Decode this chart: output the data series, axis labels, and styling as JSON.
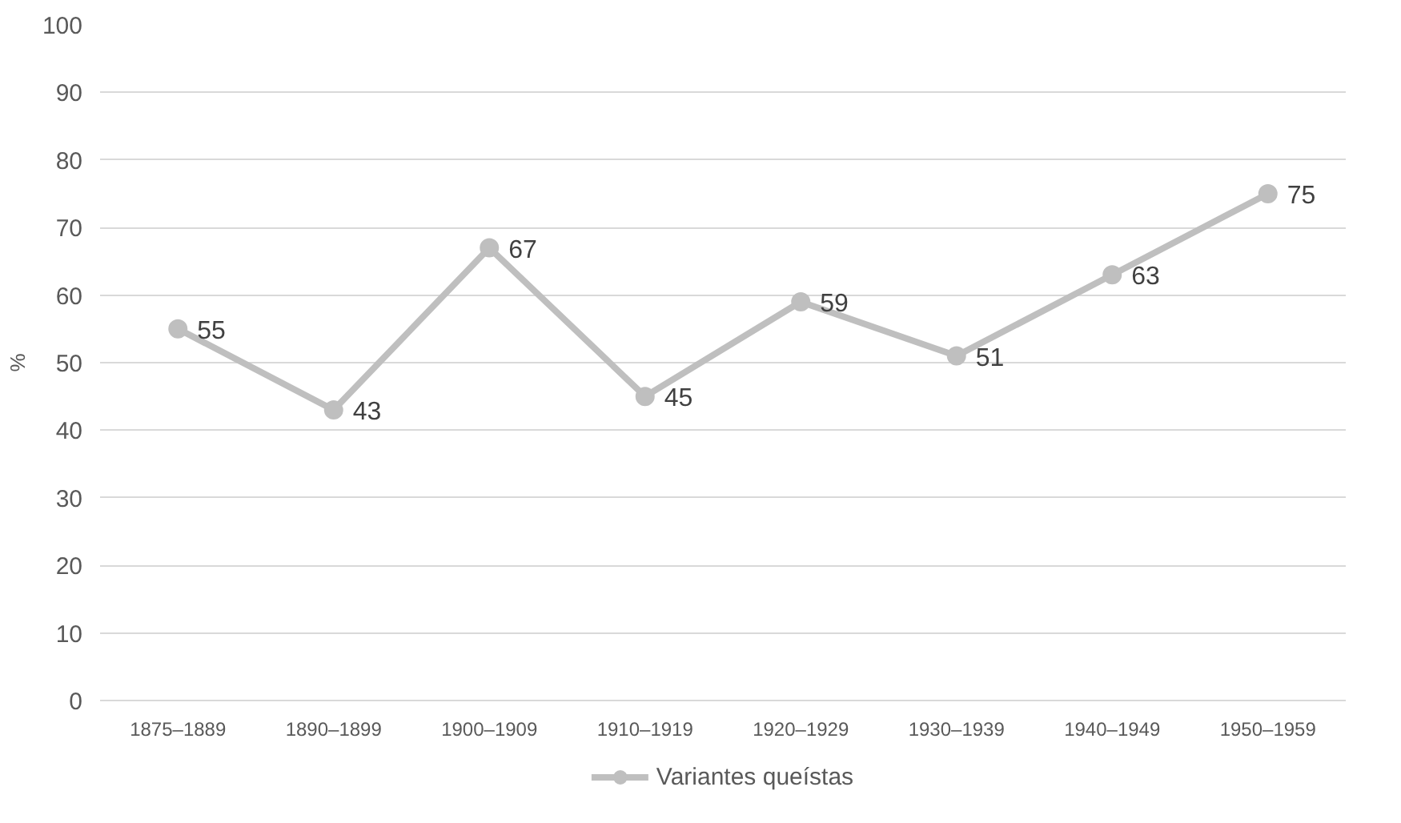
{
  "chart_data": {
    "type": "line",
    "ylabel": "%",
    "categories": [
      "1875–1889",
      "1890–1899",
      "1900–1909",
      "1910–1919",
      "1920–1929",
      "1930–1939",
      "1940–1949",
      "1950–1959"
    ],
    "series": [
      {
        "name": "Variantes queístas",
        "color": "#bfbfbf",
        "values": [
          55,
          43,
          67,
          45,
          59,
          51,
          63,
          75
        ]
      }
    ],
    "ylim": [
      0,
      100
    ],
    "yticks": [
      0,
      10,
      20,
      30,
      40,
      50,
      60,
      70,
      80,
      90,
      100
    ],
    "grid": "y",
    "legend": "bottom",
    "marker": "circle",
    "line_style": "solid",
    "data_labels": true
  }
}
